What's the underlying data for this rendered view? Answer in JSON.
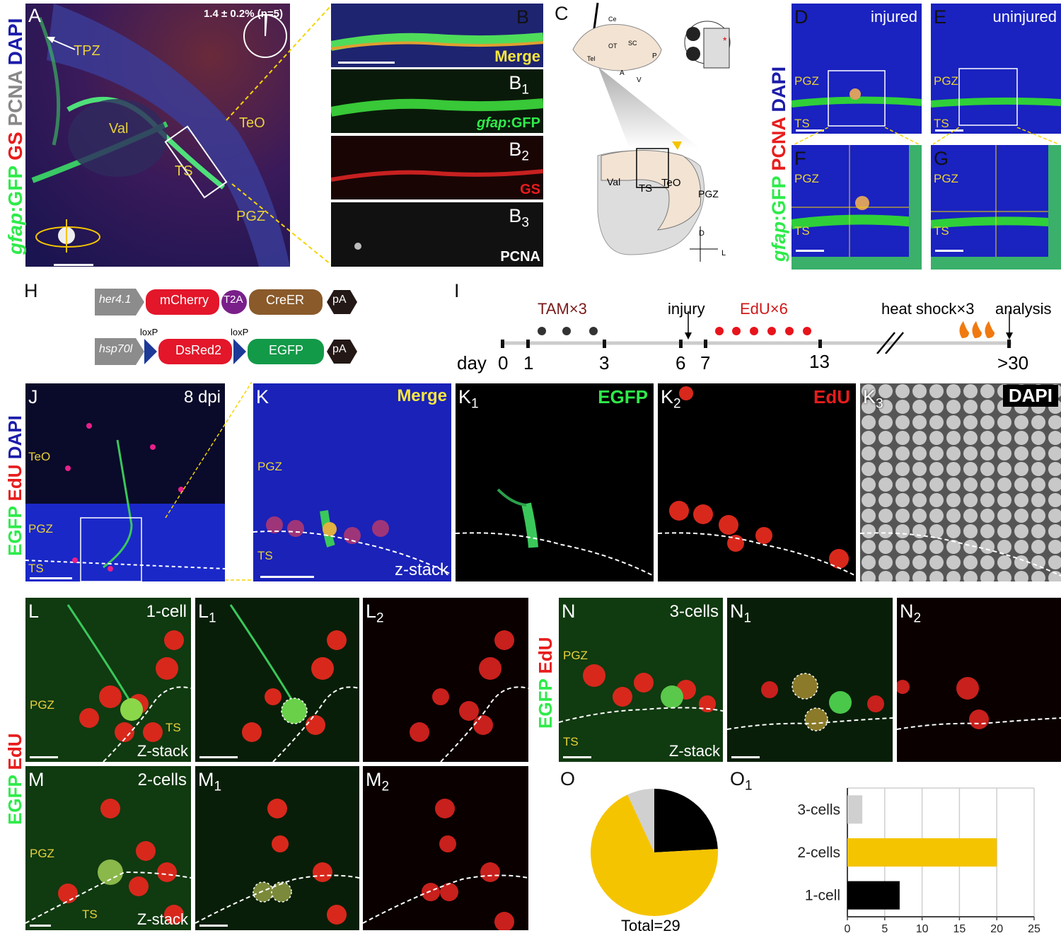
{
  "panel_A": {
    "letter": "A",
    "stat": "1.4 ± 0.2% (n=5)",
    "labels": {
      "tpz": "TPZ",
      "val": "Val",
      "teo": "TeO",
      "ts": "TS",
      "pgz": "PGZ"
    },
    "stain": {
      "gfap": "gfap",
      "gfp": ":GFP ",
      "gs": "GS ",
      "pcna": "PCNA ",
      "dapi": "DAPI"
    }
  },
  "panel_B": {
    "B": "B",
    "B1": "B",
    "B1s": "1",
    "B2": "B",
    "B2s": "2",
    "B3": "B",
    "B3s": "3",
    "merge": "Merge",
    "gfap": "gfap",
    "gfp": ":GFP",
    "gs": "GS",
    "pcna": "PCNA"
  },
  "panel_C": {
    "letter": "C",
    "brain_labels": {
      "ce": "Ce",
      "ot": "OT",
      "sc": "SC",
      "tel": "Tel"
    },
    "axes3d": {
      "a": "A",
      "p": "P",
      "v": "V"
    },
    "section_labels": {
      "val": "Val",
      "ts": "TS",
      "teo": "TeO",
      "pgz": "PGZ"
    },
    "axes2d": {
      "d": "D",
      "l": "L"
    }
  },
  "panels_DEFG": {
    "D": "D",
    "E": "E",
    "F": "F",
    "G": "G",
    "injured": "injured",
    "uninjured": "uninjured",
    "pgz": "PGZ",
    "ts": "TS",
    "stain": {
      "gfap": "gfap",
      "gfp": ":GFP ",
      "pcna": "PCNA ",
      "dapi": "DAPI"
    }
  },
  "panel_H": {
    "letter": "H",
    "construct1": {
      "promoter": "her4.1",
      "parts": [
        "mCherry",
        "T2A",
        "CreER",
        "pA"
      ]
    },
    "construct2": {
      "promoter": "hsp70l",
      "loxp": "loxP",
      "parts": [
        "DsRed2",
        "EGFP",
        "pA"
      ]
    }
  },
  "panel_I": {
    "letter": "I",
    "tam": "TAM×3",
    "injury": "injury",
    "edu": "EdU×6",
    "heat": "heat shock×3",
    "analysis": "analysis",
    "day_label": "day",
    "days": [
      "0",
      "1",
      "3",
      "6",
      "7",
      "13",
      ">30"
    ]
  },
  "panel_J": {
    "letter": "J",
    "dpi": "8 dpi",
    "teo": "TeO",
    "pgz": "PGZ",
    "ts": "TS",
    "stain": {
      "egfp": "EGFP ",
      "edu": "EdU ",
      "dapi": "DAPI"
    }
  },
  "panel_K": {
    "K": "K",
    "K1": "K",
    "K1s": "1",
    "K2": "K",
    "K2s": "2",
    "K3": "K",
    "K3s": "3",
    "merge": "Merge",
    "egfp": "EGFP",
    "edu": "EdU",
    "dapi": "DAPI",
    "pgz": "PGZ",
    "ts": "TS",
    "zstack": "z-stack"
  },
  "panel_LM": {
    "L": "L",
    "L1": "L",
    "L1s": "1",
    "L2": "L",
    "L2s": "2",
    "M": "M",
    "M1": "M",
    "M1s": "1",
    "M2": "M",
    "M2s": "2",
    "one_cell": "1-cell",
    "two_cells": "2-cells",
    "pgz": "PGZ",
    "ts": "TS",
    "zstack": "Z-stack",
    "stain": {
      "egfp": "EGFP ",
      "edu": "EdU"
    }
  },
  "panel_N": {
    "N": "N",
    "N1": "N",
    "N1s": "1",
    "N2": "N",
    "N2s": "2",
    "three_cells": "3-cells",
    "pgz": "PGZ",
    "ts": "TS",
    "zstack": "Z-stack",
    "stain": {
      "egfp": "EGFP ",
      "edu": "EdU"
    }
  },
  "panel_O": {
    "O": "O",
    "O1": "O",
    "O1s": "1",
    "total": "Total=29"
  },
  "chart_data": [
    {
      "type": "pie",
      "labels": [
        "1-cell",
        "2-cells",
        "3-cells"
      ],
      "values": [
        7,
        20,
        2
      ],
      "colors": [
        "#000000",
        "#f5c400",
        "#d0d0d0"
      ],
      "title": "Total=29"
    },
    {
      "type": "bar",
      "orientation": "horizontal",
      "categories": [
        "3-cells",
        "2-cells",
        "1-cell"
      ],
      "values": [
        2,
        20,
        7
      ],
      "colors": [
        "#d0d0d0",
        "#f5c400",
        "#000000"
      ],
      "xlim": [
        0,
        25
      ],
      "xticks": [
        "0",
        "5",
        "10",
        "15",
        "20",
        "25"
      ],
      "grid": true
    }
  ]
}
